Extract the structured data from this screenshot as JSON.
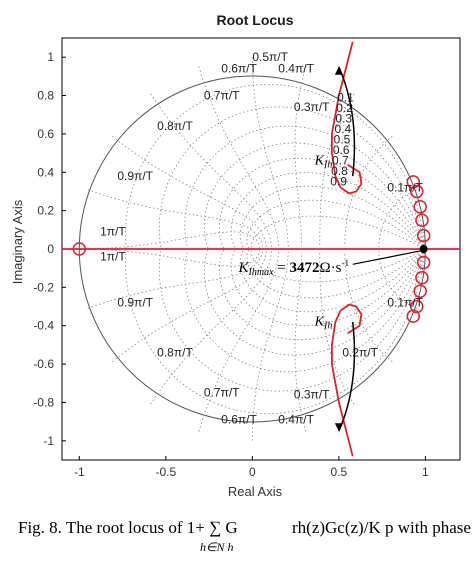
{
  "chart_data": {
    "type": "line",
    "title": "Root Locus",
    "xlabel": "Real Axis",
    "ylabel": "Imaginary Axis",
    "xlim": [
      -1.1,
      1.2
    ],
    "ylim": [
      -1.1,
      1.1
    ],
    "xticks": [
      -1,
      -0.5,
      0,
      0.5,
      1
    ],
    "xtick_labels": [
      "-1",
      "-0.5",
      "0",
      "0.5",
      "1"
    ],
    "yticks": [
      1,
      0.8,
      0.6,
      0.4,
      0.2,
      0,
      -0.2,
      -0.4,
      -0.6,
      -0.8,
      -1
    ],
    "ytick_labels": [
      "1",
      "0.8",
      "0.6",
      "0.4",
      "0.2",
      "0",
      "-0.2",
      "-0.4",
      "-0.6",
      "-0.8",
      "-1"
    ],
    "grid": "zgrid",
    "freq_labels_upper": [
      {
        "label": "0.5π/T"
      },
      {
        "label": "0.4π/T"
      },
      {
        "label": "0.6π/T"
      },
      {
        "label": "0.7π/T"
      },
      {
        "label": "0.3π/T"
      },
      {
        "label": "0.8π/T"
      },
      {
        "label": "0.9π/T"
      },
      {
        "label": "0.1π/T"
      },
      {
        "label": "1π/T"
      }
    ],
    "freq_labels_lower": [
      {
        "label": "1π/T"
      },
      {
        "label": "0.9π/T"
      },
      {
        "label": "0.1π/T"
      },
      {
        "label": "0.8π/T"
      },
      {
        "label": "0.2π/T"
      },
      {
        "label": "0.7π/T"
      },
      {
        "label": "0.3π/T"
      },
      {
        "label": "0.6π/T"
      },
      {
        "label": "0.4π/T"
      }
    ],
    "damping_labels": [
      "0.1",
      "0.2",
      "0.3",
      "0.4",
      "0.5",
      "0.6",
      "0.7",
      "0.8",
      "0.9"
    ],
    "series": [
      {
        "color": "#e0202a",
        "points": [
          [
            0.58,
            1.08
          ],
          [
            0.5,
            0.8
          ],
          [
            0.46,
            0.6
          ],
          [
            0.46,
            0.5
          ],
          [
            0.48,
            0.38
          ],
          [
            0.51,
            0.32
          ]
        ]
      },
      {
        "color": "#e0202a",
        "points": [
          [
            0.51,
            0.32
          ],
          [
            0.56,
            0.29
          ],
          [
            0.6,
            0.3
          ],
          [
            0.63,
            0.34
          ],
          [
            0.62,
            0.4
          ],
          [
            0.55,
            0.44
          ]
        ]
      },
      {
        "color": "#e0202a",
        "points": [
          [
            0.58,
            -1.08
          ],
          [
            0.5,
            -0.8
          ],
          [
            0.46,
            -0.6
          ],
          [
            0.46,
            -0.5
          ],
          [
            0.48,
            -0.38
          ],
          [
            0.51,
            -0.32
          ]
        ]
      },
      {
        "color": "#e0202a",
        "points": [
          [
            0.51,
            -0.32
          ],
          [
            0.56,
            -0.29
          ],
          [
            0.6,
            -0.3
          ],
          [
            0.63,
            -0.34
          ],
          [
            0.62,
            -0.4
          ],
          [
            0.55,
            -0.44
          ]
        ]
      },
      {
        "color": "#e0202a",
        "points": [
          [
            -1.1,
            0
          ],
          [
            1.2,
            0
          ]
        ]
      }
    ],
    "zeros": [
      [
        -1.0,
        0
      ],
      [
        0.93,
        0.35
      ],
      [
        0.95,
        0.3
      ],
      [
        0.97,
        0.22
      ],
      [
        0.98,
        0.15
      ],
      [
        0.99,
        0.07
      ],
      [
        0.93,
        -0.35
      ],
      [
        0.95,
        -0.3
      ],
      [
        0.97,
        -0.22
      ],
      [
        0.98,
        -0.15
      ],
      [
        0.99,
        -0.07
      ]
    ],
    "marker_point": [
      0.99,
      0
    ],
    "annotations": {
      "k_upper": {
        "main": "K",
        "sub": "Ih"
      },
      "k_lower": {
        "main": "K",
        "sub": "Ih"
      },
      "k_max": {
        "main": "K",
        "sub": "Ihmax",
        "eq": " = ",
        "value": "3472",
        "unit": "Ω·s",
        "sup": "-1"
      }
    },
    "colors": {
      "locus": "#e0202a",
      "grid": "#808080",
      "axes": "#000000",
      "annotation": "#000000"
    }
  },
  "caption": {
    "text": "Fig. 8.    The root locus of  1+ ∑ G",
    "formula": "rh(z)Gc(z)/K p  with phase",
    "sub": "h∈N h"
  }
}
